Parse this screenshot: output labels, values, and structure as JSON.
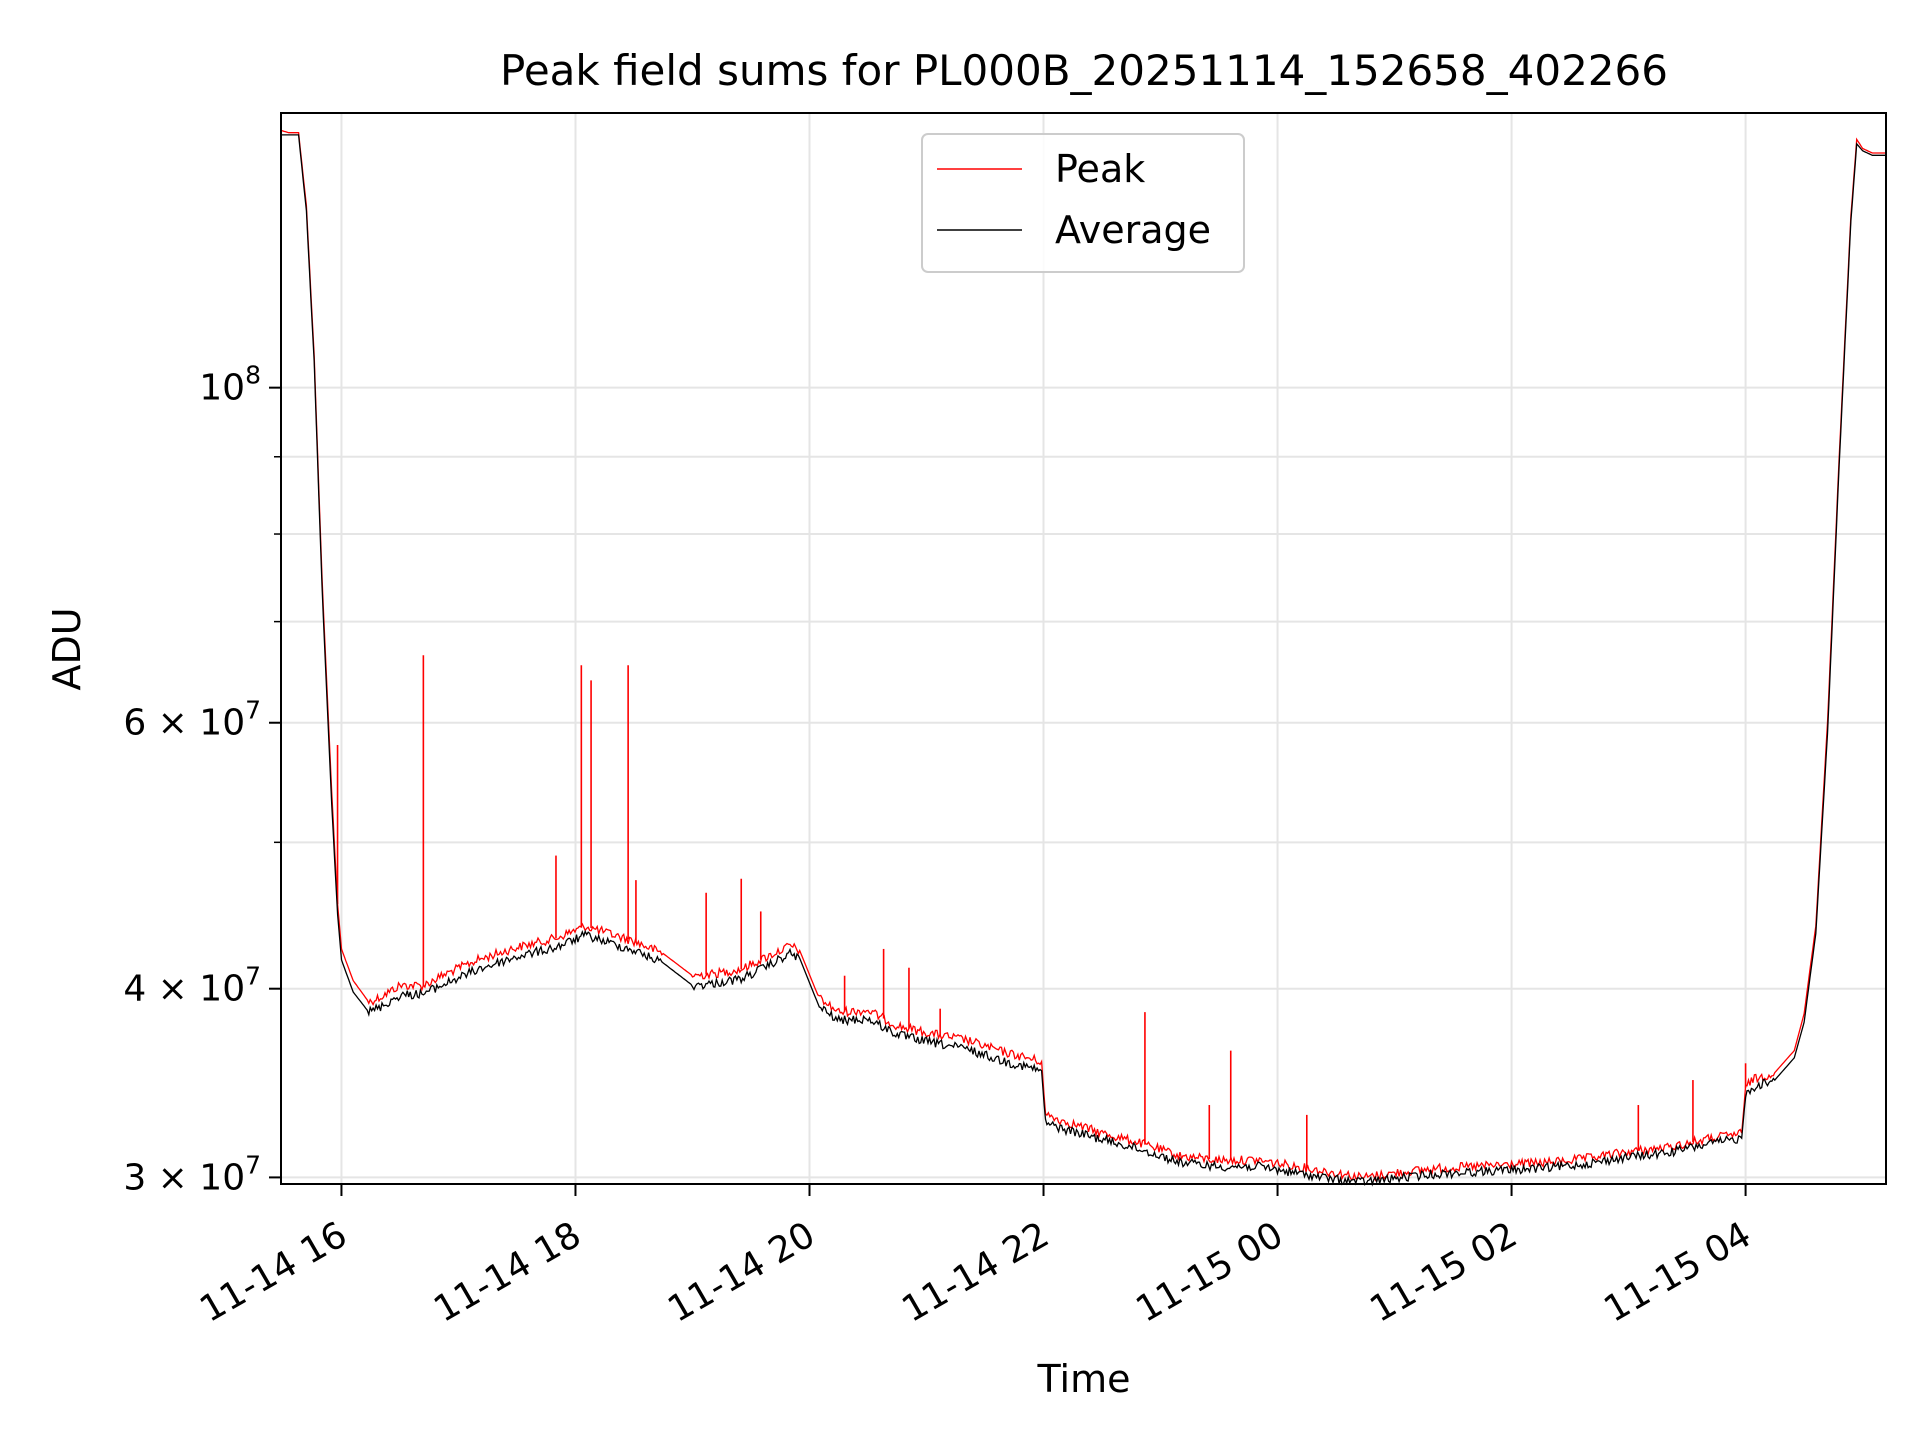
{
  "chart_data": {
    "type": "line",
    "title": "Peak field sums for PL000B_20251114_152658_402266",
    "xlabel": "Time",
    "ylabel": "ADU",
    "xlim": [
      "2025-11-14T15:29",
      "2025-11-15T05:12"
    ],
    "ylim": [
      29700000,
      152000000
    ],
    "yscale": "log",
    "grid": true,
    "legend_position": "upper center",
    "x_ticks": [
      {
        "value": "2025-11-14T16:00",
        "label": "11-14 16"
      },
      {
        "value": "2025-11-14T18:00",
        "label": "11-14 18"
      },
      {
        "value": "2025-11-14T20:00",
        "label": "11-14 20"
      },
      {
        "value": "2025-11-14T22:00",
        "label": "11-14 22"
      },
      {
        "value": "2025-11-15T00:00",
        "label": "11-15 00"
      },
      {
        "value": "2025-11-15T02:00",
        "label": "11-15 02"
      },
      {
        "value": "2025-11-15T04:00",
        "label": "11-15 04"
      }
    ],
    "y_ticks": [
      {
        "value": 30000000,
        "base": "3",
        "sup": "7"
      },
      {
        "value": 40000000,
        "base": "4",
        "sup": "7"
      },
      {
        "value": 60000000,
        "base": "6",
        "sup": "7"
      },
      {
        "value": 100000000,
        "base": "",
        "sup": "8"
      }
    ],
    "y_minor_ticks": [
      50000000,
      70000000,
      80000000,
      90000000
    ],
    "series": [
      {
        "name": "Peak",
        "color": "#ff0000",
        "x": [
          "2025-11-14T15:29",
          "2025-11-14T15:33",
          "2025-11-14T15:38",
          "2025-11-14T15:42",
          "2025-11-14T15:46",
          "2025-11-14T15:50",
          "2025-11-14T15:55",
          "2025-11-14T15:58",
          "2025-11-14T16:00",
          "2025-11-14T16:06",
          "2025-11-14T16:14",
          "2025-11-14T16:20",
          "2025-11-14T16:30",
          "2025-11-14T16:42",
          "2025-11-14T16:55",
          "2025-11-14T17:10",
          "2025-11-14T17:30",
          "2025-11-14T17:50",
          "2025-11-14T18:05",
          "2025-11-14T18:15",
          "2025-11-14T18:30",
          "2025-11-14T18:45",
          "2025-11-14T19:00",
          "2025-11-14T19:10",
          "2025-11-14T19:25",
          "2025-11-14T19:40",
          "2025-11-14T19:50",
          "2025-11-14T19:55",
          "2025-11-14T20:05",
          "2025-11-14T20:15",
          "2025-11-14T20:30",
          "2025-11-14T20:45",
          "2025-11-14T21:00",
          "2025-11-14T21:20",
          "2025-11-14T21:40",
          "2025-11-14T21:59",
          "2025-11-14T22:01",
          "2025-11-14T22:10",
          "2025-11-14T22:30",
          "2025-11-14T22:50",
          "2025-11-14T23:10",
          "2025-11-14T23:30",
          "2025-11-14T23:50",
          "2025-11-15T00:10",
          "2025-11-15T00:30",
          "2025-11-15T00:44",
          "2025-11-15T01:00",
          "2025-11-15T01:20",
          "2025-11-15T01:40",
          "2025-11-15T02:00",
          "2025-11-15T02:20",
          "2025-11-15T02:40",
          "2025-11-15T03:00",
          "2025-11-15T03:20",
          "2025-11-15T03:40",
          "2025-11-15T03:58",
          "2025-11-15T04:00",
          "2025-11-15T04:03",
          "2025-11-15T04:15",
          "2025-11-15T04:25",
          "2025-11-15T04:30",
          "2025-11-15T04:36",
          "2025-11-15T04:42",
          "2025-11-15T04:48",
          "2025-11-15T04:54",
          "2025-11-15T04:57",
          "2025-11-15T05:00",
          "2025-11-15T05:05",
          "2025-11-15T05:12"
        ],
        "values": [
          148000000,
          147500000,
          147500000,
          132000000,
          105000000,
          75000000,
          54000000,
          45500000,
          42500000,
          40500000,
          39200000,
          39500000,
          40200000,
          40200000,
          41000000,
          41800000,
          42600000,
          43200000,
          44000000,
          43600000,
          43000000,
          42200000,
          40800000,
          40900000,
          41200000,
          42100000,
          42700000,
          42400000,
          39400000,
          38600000,
          38700000,
          37800000,
          37400000,
          37000000,
          36300000,
          35800000,
          33000000,
          32700000,
          32100000,
          31600000,
          31000000,
          30800000,
          30800000,
          30500000,
          30200000,
          30000000,
          30200000,
          30400000,
          30500000,
          30600000,
          30700000,
          30900000,
          31200000,
          31400000,
          31800000,
          32100000,
          34400000,
          34800000,
          35200000,
          36400000,
          38500000,
          44000000,
          60000000,
          90000000,
          130000000,
          146000000,
          144000000,
          143000000,
          143000000
        ],
        "spikes": [
          {
            "x": "2025-11-14T15:58",
            "y": 58000000
          },
          {
            "x": "2025-11-14T16:42",
            "y": 66500000
          },
          {
            "x": "2025-11-14T17:50",
            "y": 49000000
          },
          {
            "x": "2025-11-14T18:03",
            "y": 65500000
          },
          {
            "x": "2025-11-14T18:08",
            "y": 64000000
          },
          {
            "x": "2025-11-14T18:27",
            "y": 65500000
          },
          {
            "x": "2025-11-14T18:31",
            "y": 47200000
          },
          {
            "x": "2025-11-14T19:07",
            "y": 46300000
          },
          {
            "x": "2025-11-14T19:25",
            "y": 47300000
          },
          {
            "x": "2025-11-14T19:35",
            "y": 45000000
          },
          {
            "x": "2025-11-14T20:18",
            "y": 40800000
          },
          {
            "x": "2025-11-14T20:38",
            "y": 42500000
          },
          {
            "x": "2025-11-14T20:51",
            "y": 41300000
          },
          {
            "x": "2025-11-14T21:07",
            "y": 38800000
          },
          {
            "x": "2025-11-14T22:52",
            "y": 38600000
          },
          {
            "x": "2025-11-14T23:25",
            "y": 33500000
          },
          {
            "x": "2025-11-14T23:36",
            "y": 36400000
          },
          {
            "x": "2025-11-15T00:15",
            "y": 33000000
          },
          {
            "x": "2025-11-15T03:05",
            "y": 33500000
          },
          {
            "x": "2025-11-15T03:33",
            "y": 34800000
          },
          {
            "x": "2025-11-15T04:00",
            "y": 35700000
          }
        ]
      },
      {
        "name": "Average",
        "color": "#000000",
        "x": [
          "2025-11-14T15:29",
          "2025-11-14T15:33",
          "2025-11-14T15:38",
          "2025-11-14T15:42",
          "2025-11-14T15:46",
          "2025-11-14T15:50",
          "2025-11-14T15:55",
          "2025-11-14T15:58",
          "2025-11-14T16:00",
          "2025-11-14T16:06",
          "2025-11-14T16:14",
          "2025-11-14T16:20",
          "2025-11-14T16:30",
          "2025-11-14T16:42",
          "2025-11-14T16:55",
          "2025-11-14T17:10",
          "2025-11-14T17:30",
          "2025-11-14T17:50",
          "2025-11-14T18:05",
          "2025-11-14T18:15",
          "2025-11-14T18:30",
          "2025-11-14T18:45",
          "2025-11-14T19:00",
          "2025-11-14T19:10",
          "2025-11-14T19:25",
          "2025-11-14T19:40",
          "2025-11-14T19:50",
          "2025-11-14T19:55",
          "2025-11-14T20:05",
          "2025-11-14T20:15",
          "2025-11-14T20:30",
          "2025-11-14T20:45",
          "2025-11-14T21:00",
          "2025-11-14T21:20",
          "2025-11-14T21:40",
          "2025-11-14T21:59",
          "2025-11-14T22:01",
          "2025-11-14T22:10",
          "2025-11-14T22:30",
          "2025-11-14T22:50",
          "2025-11-14T23:10",
          "2025-11-14T23:30",
          "2025-11-14T23:50",
          "2025-11-15T00:10",
          "2025-11-15T00:30",
          "2025-11-15T00:44",
          "2025-11-15T01:00",
          "2025-11-15T01:20",
          "2025-11-15T01:40",
          "2025-11-15T02:00",
          "2025-11-15T02:20",
          "2025-11-15T02:40",
          "2025-11-15T03:00",
          "2025-11-15T03:20",
          "2025-11-15T03:40",
          "2025-11-15T03:58",
          "2025-11-15T04:00",
          "2025-11-15T04:03",
          "2025-11-15T04:15",
          "2025-11-15T04:25",
          "2025-11-15T04:30",
          "2025-11-15T04:36",
          "2025-11-15T04:42",
          "2025-11-15T04:48",
          "2025-11-15T04:54",
          "2025-11-15T04:57",
          "2025-11-15T05:00",
          "2025-11-15T05:05",
          "2025-11-15T05:12"
        ],
        "values": [
          147000000,
          147000000,
          147000000,
          131000000,
          104000000,
          74000000,
          53000000,
          44800000,
          41800000,
          39800000,
          38600000,
          38900000,
          39600000,
          39700000,
          40400000,
          41200000,
          42000000,
          42600000,
          43400000,
          43000000,
          42400000,
          41600000,
          40200000,
          40300000,
          40600000,
          41500000,
          42200000,
          41900000,
          38900000,
          38100000,
          38200000,
          37300000,
          36900000,
          36500000,
          35800000,
          35300000,
          32600000,
          32300000,
          31800000,
          31300000,
          30700000,
          30500000,
          30500000,
          30200000,
          29900000,
          29800000,
          29950000,
          30150000,
          30250000,
          30350000,
          30450000,
          30650000,
          30950000,
          31150000,
          31550000,
          31850000,
          34000000,
          34400000,
          34800000,
          36000000,
          38000000,
          43500000,
          59000000,
          89000000,
          129000000,
          145000000,
          143500000,
          142500000,
          142500000
        ]
      }
    ]
  }
}
